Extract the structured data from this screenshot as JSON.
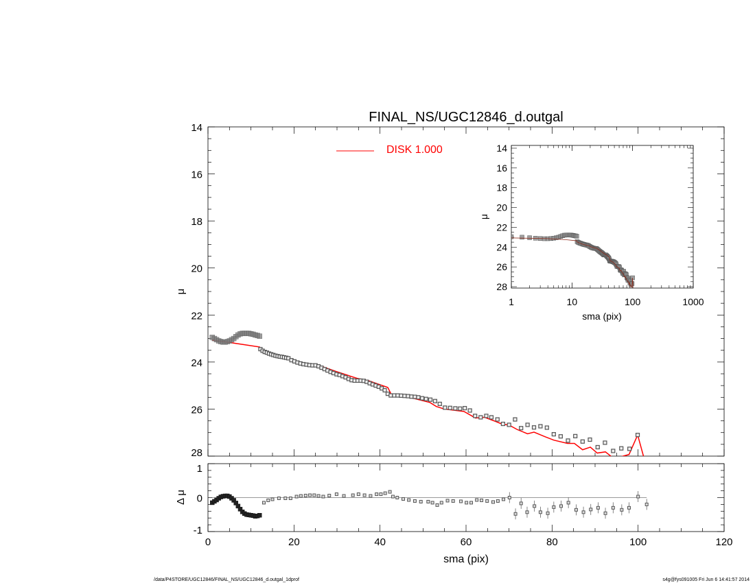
{
  "chart_data": [
    {
      "type": "scatter",
      "title": "FINAL_NS/UGC12846_d.outgal",
      "xlabel": "",
      "ylabel": "μ",
      "xlim": [
        0,
        120
      ],
      "ylim": [
        14,
        28
      ],
      "y_inverted": true,
      "yticks": [
        "14",
        "16",
        "18",
        "20",
        "22",
        "24",
        "26",
        "28"
      ],
      "legend": {
        "placement": "top-center",
        "entries": [
          {
            "label": "DISK  1.000",
            "color": "#ff0000"
          }
        ]
      },
      "colors": {
        "data": "#808080",
        "model": "#ff0000"
      },
      "series": [
        {
          "kind": "data-points",
          "x": [
            1,
            1.5,
            2,
            2.5,
            3,
            3.5,
            4,
            4.5,
            5,
            5.5,
            6,
            6.5,
            7,
            7.5,
            8,
            8.5,
            9,
            9.5,
            10,
            10.5,
            11,
            11.5,
            12,
            12.2,
            12.7,
            13.2,
            13.7,
            14.2,
            14.7,
            15.2,
            15.7,
            16.2,
            16.7,
            17.2,
            17.7,
            18.2,
            18.7,
            19.4,
            20.1,
            20.8,
            21.5,
            22.2,
            22.9,
            23.6,
            24.3,
            25,
            25.7,
            26.4,
            27.1,
            27.8,
            28.5,
            29.2,
            29.9,
            30.6,
            31.3,
            32,
            32.7,
            33.4,
            34.1,
            34.8,
            35.5,
            36.2,
            36.9,
            37.6,
            38.3,
            39,
            39.7,
            40.4,
            41.1,
            41.8,
            42.5,
            43.3,
            44.1,
            44.9,
            45.7,
            46.5,
            47.3,
            48.1,
            48.9,
            49.8,
            50.7,
            51.7,
            52.8,
            53.9,
            55.1,
            56.3,
            57.5,
            58.6,
            59.7,
            60.9,
            62.1,
            63.4,
            64.7,
            65.9,
            67.3,
            68.6,
            70,
            71.4,
            72.8,
            74.3,
            75.8,
            77.3,
            78.8,
            80.4,
            82,
            83.7,
            85.4,
            87.1,
            88.8,
            90.6,
            92.3,
            94.2,
            96.1,
            98,
            99.9
          ],
          "y": [
            22.95,
            23,
            23.05,
            23.1,
            23.13,
            23.15,
            23.15,
            23.13,
            23.1,
            23.05,
            23,
            22.92,
            22.85,
            22.8,
            22.78,
            22.78,
            22.78,
            22.78,
            22.8,
            22.82,
            22.85,
            22.87,
            22.9,
            23.45,
            23.52,
            23.57,
            23.6,
            23.64,
            23.67,
            23.7,
            23.73,
            23.75,
            23.77,
            23.78,
            23.8,
            23.82,
            23.84,
            23.92,
            23.97,
            24.02,
            24.06,
            24.09,
            24.11,
            24.13,
            24.14,
            24.14,
            24.18,
            24.24,
            24.3,
            24.36,
            24.42,
            24.47,
            24.52,
            24.55,
            24.6,
            24.65,
            24.72,
            24.77,
            24.79,
            24.79,
            24.79,
            24.8,
            24.84,
            24.9,
            24.95,
            25,
            25.05,
            25.12,
            25.2,
            25.35,
            25.42,
            25.42,
            25.42,
            25.43,
            25.44,
            25.45,
            25.47,
            25.48,
            25.5,
            25.54,
            25.57,
            25.6,
            25.66,
            25.78,
            25.94,
            25.95,
            25.97,
            25.98,
            25.96,
            26.06,
            26.29,
            26.35,
            26.29,
            26.35,
            26.44,
            26.63,
            26.67,
            26.44,
            26.81,
            26.67,
            26.78,
            26.73,
            26.79,
            27.07,
            27.16,
            27.34,
            27.15,
            27.38,
            27.3,
            27.62,
            27.43,
            27.78,
            27.67,
            27.69,
            27.1
          ]
        },
        {
          "kind": "model-line",
          "name": "DISK  1.000",
          "x": [
            1,
            4,
            8,
            12,
            12.3,
            15.5,
            19.2,
            21.3,
            25.6,
            29.8,
            34.6,
            37.3,
            41.8,
            42.6,
            46.2,
            51.6,
            53.1,
            55,
            59.5,
            62.2,
            64.3,
            66.8,
            68.4,
            70,
            71.9,
            74.3,
            75.8,
            78.3,
            80.4,
            83.6,
            85.2,
            87.1,
            88.9,
            90.5,
            92.4,
            94,
            95.5,
            97.9,
            99.9,
            101.7
          ],
          "y": [
            23.07,
            23.14,
            23.25,
            23.36,
            23.5,
            23.74,
            23.87,
            24.01,
            24.13,
            24.4,
            24.69,
            24.79,
            25.08,
            25.37,
            25.47,
            25.72,
            25.89,
            26,
            26.1,
            26.38,
            26.35,
            26.52,
            26.64,
            26.68,
            26.87,
            27.05,
            26.98,
            27.17,
            27.32,
            27.46,
            27.46,
            27.73,
            27.62,
            27.87,
            27.82,
            28.05,
            28.05,
            27.93,
            27.1,
            28.3
          ]
        }
      ]
    },
    {
      "type": "scatter",
      "xlabel": "sma (pix)",
      "ylabel": "Δ μ",
      "xlim": [
        0,
        120
      ],
      "ylim": [
        -1,
        1
      ],
      "xticks": [
        "0",
        "20",
        "40",
        "60",
        "80",
        "100",
        "120"
      ],
      "yticks": [
        "1",
        "0",
        "-1"
      ],
      "reference_line": 0,
      "series": [
        {
          "kind": "residuals",
          "x": [
            1,
            1.5,
            2,
            2.5,
            3,
            3.5,
            4,
            4.5,
            5,
            5.5,
            6,
            6.5,
            7,
            7.5,
            8,
            8.5,
            9,
            9.5,
            10,
            10.5,
            11,
            11.5,
            12,
            13,
            14,
            15,
            16.5,
            18,
            19.2,
            20.6,
            21.6,
            22.7,
            23.7,
            24.7,
            25.7,
            26.8,
            28.2,
            29.9,
            31.6,
            33.7,
            35,
            36.4,
            37.8,
            39.2,
            40.2,
            41.2,
            42.3,
            43,
            44,
            45.4,
            46.7,
            48.1,
            49.5,
            51.2,
            52.2,
            53.3,
            54.3,
            55.7,
            57,
            58.8,
            60.1,
            61.2,
            62.5,
            63.6,
            64.9,
            66.3,
            67.4,
            68.7,
            70.1,
            71.5,
            72.8,
            74.2,
            75.9,
            77.3,
            79,
            80.4,
            82.1,
            83.8,
            85.6,
            87.3,
            89,
            90.7,
            92.4,
            94.2,
            96.2,
            97.9,
            100,
            102
          ],
          "y": [
            -0.15,
            -0.11,
            -0.07,
            -0.02,
            0.02,
            0.04,
            0.05,
            0.05,
            0.03,
            -0.02,
            -0.08,
            -0.16,
            -0.25,
            -0.34,
            -0.42,
            -0.47,
            -0.5,
            -0.51,
            -0.52,
            -0.53,
            -0.55,
            -0.54,
            -0.52,
            -0.15,
            -0.08,
            -0.05,
            -0.02,
            -0.02,
            -0.02,
            0.03,
            0.05,
            0.06,
            0.07,
            0.07,
            0.05,
            0.03,
            0.06,
            0.1,
            0.05,
            0.07,
            0.1,
            0.07,
            0.05,
            0.1,
            0.1,
            0.13,
            0.17,
            0.03,
            0,
            -0.04,
            -0.07,
            -0.1,
            -0.12,
            -0.12,
            -0.15,
            -0.22,
            -0.15,
            -0.09,
            -0.1,
            -0.11,
            -0.15,
            -0.15,
            -0.07,
            -0.08,
            -0.1,
            -0.13,
            -0.1,
            -0.05,
            0,
            -0.48,
            -0.17,
            -0.43,
            -0.25,
            -0.43,
            -0.46,
            -0.28,
            -0.25,
            -0.15,
            -0.36,
            -0.43,
            -0.35,
            -0.3,
            -0.46,
            -0.3,
            -0.36,
            -0.3,
            0.03,
            -0.2
          ]
        }
      ]
    },
    {
      "type": "scatter",
      "inset": true,
      "xlabel": "sma (pix)",
      "ylabel": "μ",
      "x_scale": "log",
      "xlim": [
        1,
        1000
      ],
      "ylim": [
        14,
        28
      ],
      "y_inverted": true,
      "xticks": [
        "1",
        "10",
        "100",
        "1000"
      ],
      "yticks": [
        "14",
        "16",
        "18",
        "20",
        "22",
        "24",
        "26",
        "28"
      ],
      "colors": {
        "data": "#707070",
        "model": "#8b2a1a"
      },
      "note_series": "same data and model as main panel"
    }
  ],
  "footer": {
    "left": "/data/P4STORE/UGC12846/FINAL_NS/UGC12846_d.outgal_1dprof",
    "right": "s4g@fys091005  Fri Jun  6 14:41:57 2014"
  }
}
